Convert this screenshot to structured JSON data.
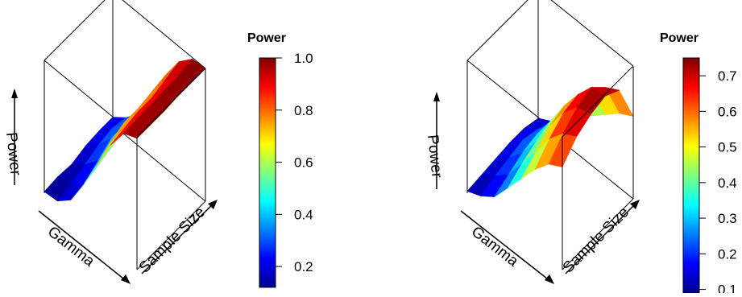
{
  "chart_data": [
    {
      "type": "surface3d",
      "title": "",
      "colorbar": {
        "title": "Power",
        "min": 0.12,
        "max": 1.0,
        "ticks": [
          "0.2",
          "0.4",
          "0.6",
          "0.8",
          "1.0"
        ],
        "tick_values": [
          0.2,
          0.4,
          0.6,
          0.8,
          1.0
        ]
      },
      "axis_labels": {
        "x": "Gamma",
        "y": "Sample Size",
        "z": "Power"
      },
      "grid": false,
      "z_matrix": [
        [
          0.13,
          0.14,
          0.13,
          0.16,
          0.17,
          0.17
        ],
        [
          0.14,
          0.16,
          0.2,
          0.24,
          0.26,
          0.24
        ],
        [
          0.22,
          0.24,
          0.3,
          0.36,
          0.36,
          0.34
        ],
        [
          0.4,
          0.43,
          0.46,
          0.49,
          0.52,
          0.5
        ],
        [
          0.6,
          0.66,
          0.7,
          0.7,
          0.72,
          0.74
        ],
        [
          0.8,
          0.82,
          0.84,
          0.84,
          0.87,
          0.9
        ],
        [
          0.95,
          0.96,
          0.96,
          0.97,
          0.97,
          0.99
        ],
        [
          0.99,
          0.99,
          0.99,
          1.0,
          1.0,
          1.0
        ]
      ]
    },
    {
      "type": "surface3d",
      "title": "",
      "colorbar": {
        "title": "Power",
        "min": 0.09,
        "max": 0.75,
        "ticks": [
          "0.1",
          "0.2",
          "0.3",
          "0.4",
          "0.5",
          "0.6",
          "0.7"
        ],
        "tick_values": [
          0.1,
          0.2,
          0.3,
          0.4,
          0.5,
          0.6,
          0.7
        ]
      },
      "axis_labels": {
        "x": "Gamma",
        "y": "Sample Size",
        "z": "Power"
      },
      "grid": false,
      "z_matrix": [
        [
          0.1,
          0.11,
          0.12,
          0.13,
          0.13,
          0.11
        ],
        [
          0.13,
          0.16,
          0.18,
          0.2,
          0.18,
          0.15
        ],
        [
          0.18,
          0.22,
          0.26,
          0.28,
          0.26,
          0.2
        ],
        [
          0.28,
          0.33,
          0.37,
          0.4,
          0.37,
          0.28
        ],
        [
          0.38,
          0.44,
          0.5,
          0.53,
          0.48,
          0.34
        ],
        [
          0.48,
          0.56,
          0.62,
          0.64,
          0.58,
          0.4
        ],
        [
          0.56,
          0.64,
          0.7,
          0.73,
          0.66,
          0.46
        ],
        [
          0.6,
          0.68,
          0.72,
          0.74,
          0.7,
          0.5
        ]
      ]
    }
  ]
}
